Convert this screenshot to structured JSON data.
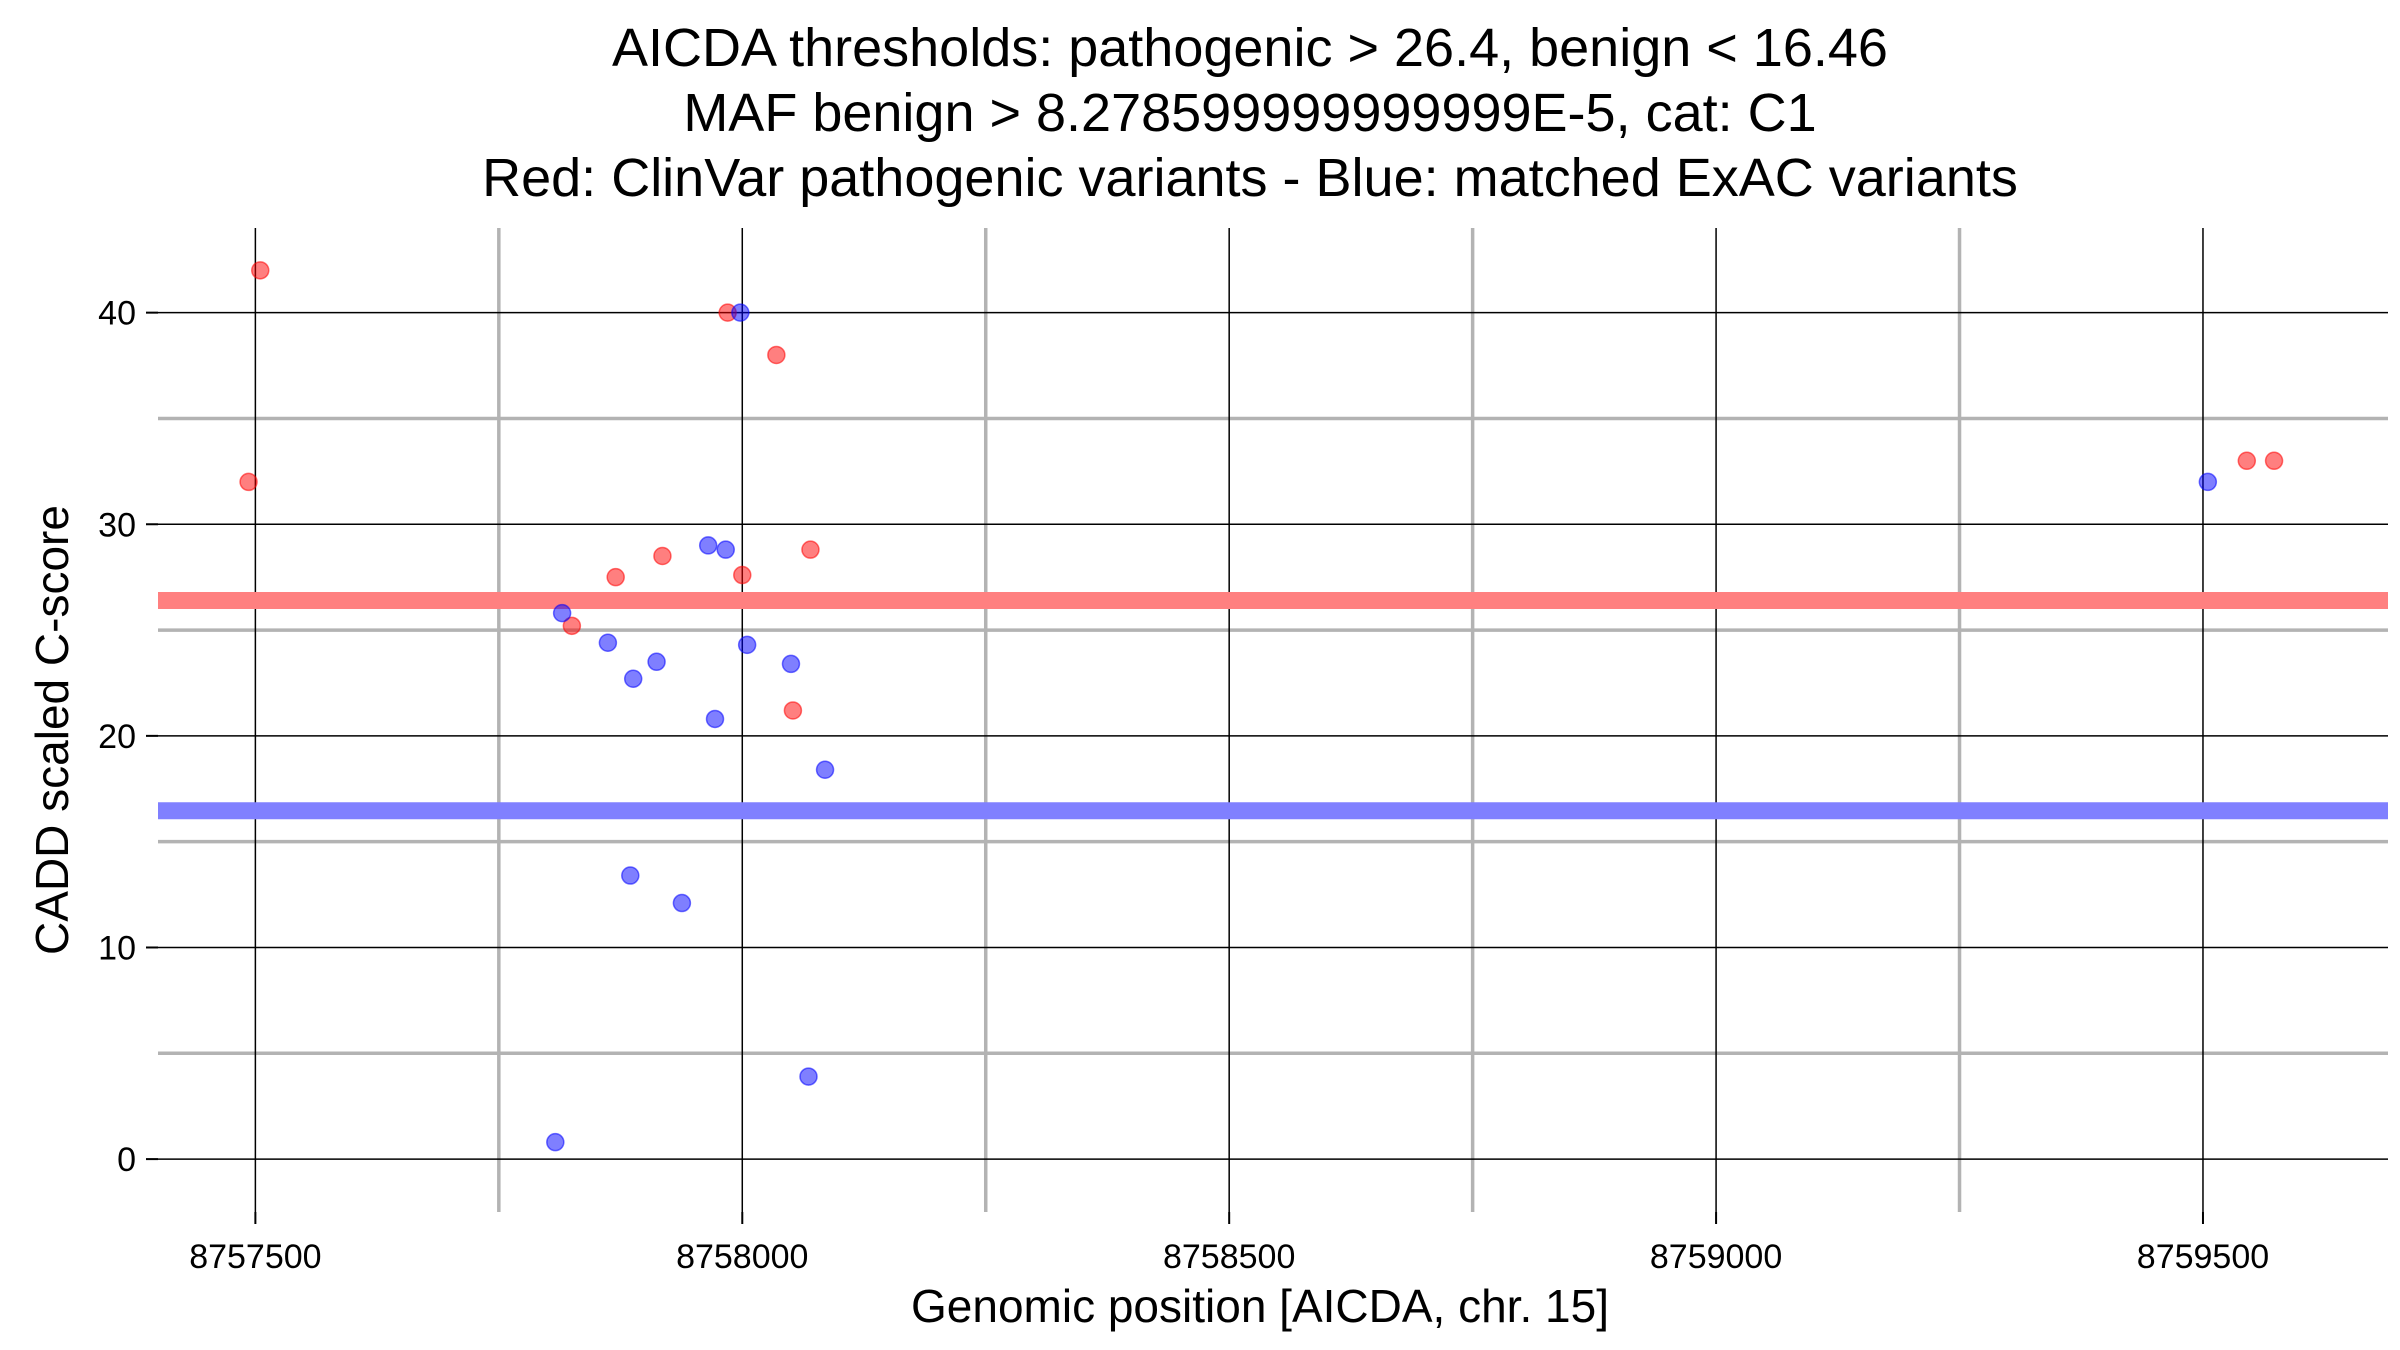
{
  "chart_data": {
    "type": "scatter",
    "title_lines": [
      "AICDA thresholds: pathogenic > 26.4, benign < 16.46",
      "MAF benign > 8.278599999999999E-5, cat: C1",
      "Red: ClinVar pathogenic variants - Blue: matched ExAC variants"
    ],
    "xlabel": "Genomic position [AICDA, chr. 15]",
    "ylabel": "CADD scaled C-score",
    "xlim": [
      8757400,
      8759690
    ],
    "ylim": [
      -2.5,
      44
    ],
    "x_major_ticks": [
      8757500,
      8758000,
      8758500,
      8759000,
      8759500
    ],
    "x_minor_ticks": [
      8757750,
      8758250,
      8758750,
      8759250
    ],
    "y_major_ticks": [
      0,
      10,
      20,
      30,
      40
    ],
    "y_minor_ticks": [
      5,
      15,
      25,
      35
    ],
    "thresholds": [
      {
        "name": "pathogenic",
        "value": 26.4,
        "color": "#ff8080"
      },
      {
        "name": "benign",
        "value": 16.46,
        "color": "#8080ff"
      }
    ],
    "series": [
      {
        "name": "ClinVar pathogenic variants",
        "color": "#ff0000",
        "points": [
          {
            "x": 8757505,
            "y": 42.0
          },
          {
            "x": 8757493,
            "y": 32.0
          },
          {
            "x": 8757985,
            "y": 40.0
          },
          {
            "x": 8758035,
            "y": 38.0
          },
          {
            "x": 8757870,
            "y": 27.5
          },
          {
            "x": 8757918,
            "y": 28.5
          },
          {
            "x": 8758000,
            "y": 27.6
          },
          {
            "x": 8758070,
            "y": 28.8
          },
          {
            "x": 8757825,
            "y": 25.2
          },
          {
            "x": 8758052,
            "y": 21.2
          },
          {
            "x": 8759545,
            "y": 33.0
          },
          {
            "x": 8759573,
            "y": 33.0
          }
        ]
      },
      {
        "name": "matched ExAC variants",
        "color": "#0000ff",
        "points": [
          {
            "x": 8757998,
            "y": 40.0
          },
          {
            "x": 8759505,
            "y": 32.0
          },
          {
            "x": 8757965,
            "y": 29.0
          },
          {
            "x": 8757983,
            "y": 28.8
          },
          {
            "x": 8757815,
            "y": 25.8
          },
          {
            "x": 8757862,
            "y": 24.4
          },
          {
            "x": 8757912,
            "y": 23.5
          },
          {
            "x": 8757888,
            "y": 22.7
          },
          {
            "x": 8758005,
            "y": 24.3
          },
          {
            "x": 8758050,
            "y": 23.4
          },
          {
            "x": 8757972,
            "y": 20.8
          },
          {
            "x": 8758085,
            "y": 18.4
          },
          {
            "x": 8757885,
            "y": 13.4
          },
          {
            "x": 8757938,
            "y": 12.1
          },
          {
            "x": 8758068,
            "y": 3.9
          },
          {
            "x": 8757808,
            "y": 0.8
          }
        ]
      }
    ]
  }
}
